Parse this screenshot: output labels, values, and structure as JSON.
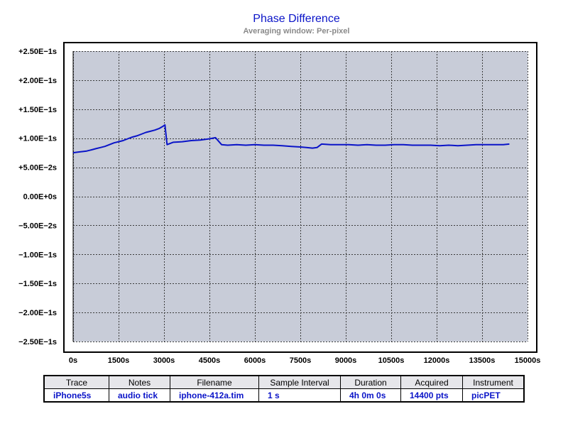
{
  "chart_data": {
    "type": "line",
    "title": "Phase Difference",
    "subtitle": "Averaging window: Per-pixel",
    "xlabel": "",
    "ylabel": "",
    "xlim": [
      0,
      15000
    ],
    "ylim": [
      -0.25,
      0.25
    ],
    "grid": true,
    "x_ticks": [
      "0s",
      "1500s",
      "3000s",
      "4500s",
      "6000s",
      "7500s",
      "9000s",
      "10500s",
      "12000s",
      "13500s",
      "15000s"
    ],
    "y_ticks": [
      "+2.50E−1s",
      "+2.00E−1s",
      "+1.50E−1s",
      "+1.00E−1s",
      "+5.00E−2s",
      "0.00E+0s",
      "−5.00E−2s",
      "−1.00E−1s",
      "−1.50E−1s",
      "−2.00E−1s",
      "−2.50E−1s"
    ],
    "y_tick_values": [
      0.25,
      0.2,
      0.15,
      0.1,
      0.05,
      0,
      -0.05,
      -0.1,
      -0.15,
      -0.2,
      -0.25
    ],
    "series": [
      {
        "name": "iPhone5s",
        "color": "#0a14c8",
        "x": [
          0,
          150,
          300,
          450,
          600,
          750,
          900,
          1050,
          1200,
          1350,
          1500,
          1650,
          1800,
          1950,
          2100,
          2250,
          2400,
          2550,
          2700,
          2850,
          2950,
          3030,
          3100,
          3300,
          3600,
          3900,
          4200,
          4500,
          4700,
          4800,
          4900,
          5100,
          5400,
          5700,
          6000,
          6300,
          6600,
          6900,
          7200,
          7500,
          7700,
          7900,
          8050,
          8200,
          8500,
          8800,
          9100,
          9400,
          9700,
          10000,
          10300,
          10600,
          10900,
          11200,
          11500,
          11800,
          12100,
          12400,
          12700,
          13000,
          13300,
          13600,
          13900,
          14200,
          14400
        ],
        "y": [
          0.075,
          0.076,
          0.077,
          0.078,
          0.08,
          0.082,
          0.084,
          0.086,
          0.089,
          0.092,
          0.094,
          0.096,
          0.099,
          0.102,
          0.104,
          0.107,
          0.11,
          0.112,
          0.114,
          0.117,
          0.12,
          0.123,
          0.089,
          0.093,
          0.094,
          0.096,
          0.097,
          0.099,
          0.101,
          0.095,
          0.089,
          0.088,
          0.089,
          0.088,
          0.089,
          0.088,
          0.088,
          0.087,
          0.086,
          0.085,
          0.084,
          0.083,
          0.084,
          0.09,
          0.089,
          0.089,
          0.089,
          0.088,
          0.089,
          0.088,
          0.088,
          0.089,
          0.089,
          0.088,
          0.088,
          0.088,
          0.087,
          0.088,
          0.087,
          0.088,
          0.089,
          0.089,
          0.089,
          0.089,
          0.09
        ]
      }
    ]
  },
  "table": {
    "headers": [
      "Trace",
      "Notes",
      "Filename",
      "Sample Interval",
      "Duration",
      "Acquired",
      "Instrument"
    ],
    "row": [
      "iPhone5s",
      "audio tick",
      "iphone-412a.tim",
      "1 s",
      "4h 0m 0s",
      "14400 pts",
      "picPET"
    ]
  },
  "colors": {
    "plot_background": "#c8ccd8",
    "series": "#0a14c8",
    "zero_label": "#0a14c8"
  }
}
